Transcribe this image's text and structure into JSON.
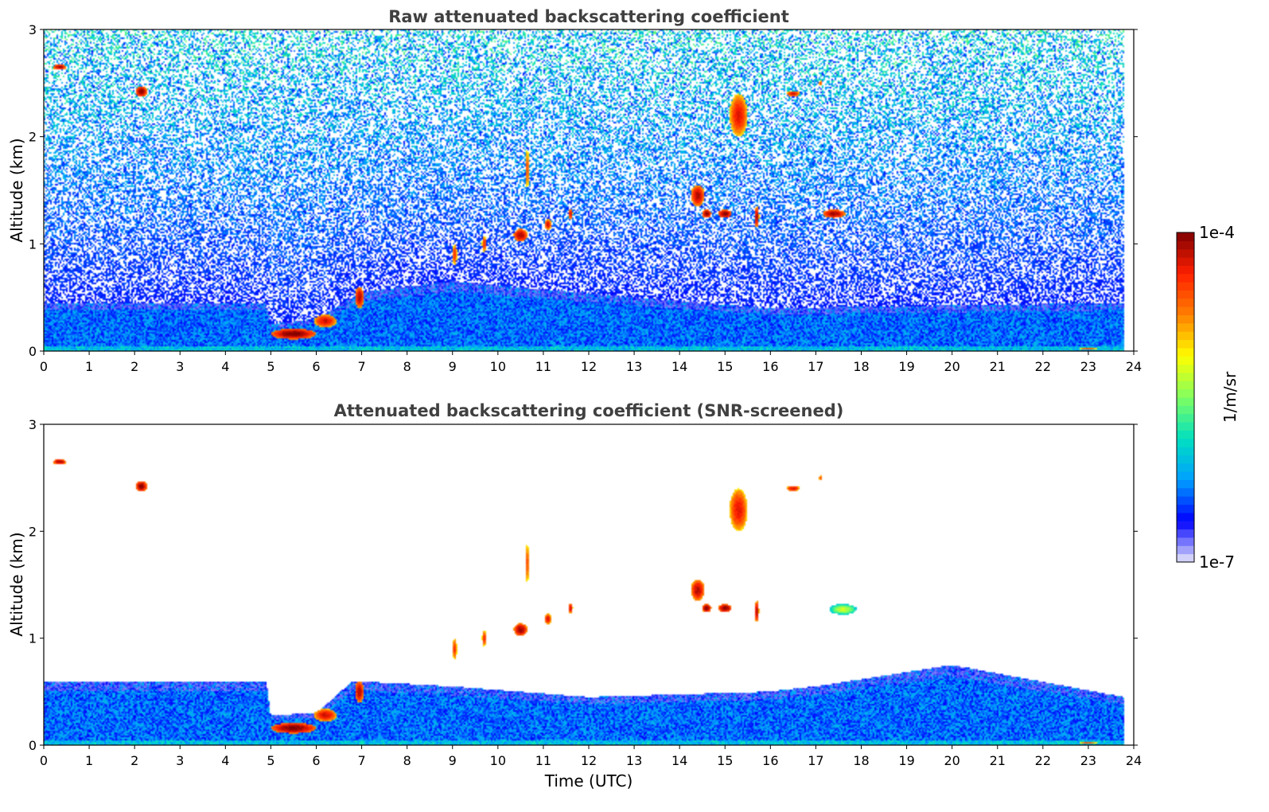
{
  "chart_data": [
    {
      "type": "heatmap",
      "title": "Raw attenuated backscattering coefficient",
      "xlabel": "",
      "ylabel": "Altitude (km)",
      "xlim": [
        0,
        24
      ],
      "ylim": [
        0,
        3
      ],
      "x_ticks": [
        "0",
        "1",
        "2",
        "3",
        "4",
        "5",
        "6",
        "7",
        "8",
        "9",
        "10",
        "11",
        "12",
        "13",
        "14",
        "15",
        "16",
        "17",
        "18",
        "19",
        "20",
        "21",
        "22",
        "23",
        "24"
      ],
      "y_ticks": [
        "0",
        "1",
        "2",
        "3"
      ],
      "data_extent_x": [
        0,
        23.8
      ],
      "noise": "high",
      "boundary_layer": [
        {
          "x": 0,
          "top": 0.45
        },
        {
          "x": 4.9,
          "top": 0.45
        },
        {
          "x": 5.0,
          "top": 0.25
        },
        {
          "x": 6.0,
          "top": 0.3
        },
        {
          "x": 7.0,
          "top": 0.55
        },
        {
          "x": 9.0,
          "top": 0.65
        },
        {
          "x": 13.0,
          "top": 0.5
        },
        {
          "x": 16.0,
          "top": 0.4
        },
        {
          "x": 23.8,
          "top": 0.45
        }
      ],
      "features": [
        {
          "x": 0.35,
          "y": 2.65,
          "w": 0.3,
          "h": 0.05,
          "level": 0.95
        },
        {
          "x": 2.15,
          "y": 2.42,
          "w": 0.25,
          "h": 0.1,
          "level": 0.97
        },
        {
          "x": 5.5,
          "y": 0.16,
          "w": 1.0,
          "h": 0.1,
          "level": 0.98
        },
        {
          "x": 6.2,
          "y": 0.28,
          "w": 0.5,
          "h": 0.12,
          "level": 0.9
        },
        {
          "x": 6.95,
          "y": 0.5,
          "w": 0.2,
          "h": 0.2,
          "level": 0.93
        },
        {
          "x": 9.05,
          "y": 0.9,
          "w": 0.1,
          "h": 0.2,
          "level": 0.85
        },
        {
          "x": 9.7,
          "y": 1.0,
          "w": 0.1,
          "h": 0.15,
          "level": 0.85
        },
        {
          "x": 10.5,
          "y": 1.08,
          "w": 0.3,
          "h": 0.12,
          "level": 0.95
        },
        {
          "x": 10.65,
          "y": 1.7,
          "w": 0.06,
          "h": 0.4,
          "level": 0.85
        },
        {
          "x": 11.1,
          "y": 1.18,
          "w": 0.15,
          "h": 0.1,
          "level": 0.9
        },
        {
          "x": 11.6,
          "y": 1.28,
          "w": 0.1,
          "h": 0.1,
          "level": 0.9
        },
        {
          "x": 14.4,
          "y": 1.45,
          "w": 0.3,
          "h": 0.2,
          "level": 0.93
        },
        {
          "x": 14.6,
          "y": 1.28,
          "w": 0.2,
          "h": 0.08,
          "level": 0.97
        },
        {
          "x": 15.0,
          "y": 1.28,
          "w": 0.3,
          "h": 0.08,
          "level": 0.97
        },
        {
          "x": 15.3,
          "y": 2.2,
          "w": 0.4,
          "h": 0.4,
          "level": 0.88
        },
        {
          "x": 15.7,
          "y": 1.25,
          "w": 0.1,
          "h": 0.2,
          "level": 0.93
        },
        {
          "x": 16.5,
          "y": 2.4,
          "w": 0.3,
          "h": 0.05,
          "level": 0.9
        },
        {
          "x": 17.1,
          "y": 2.5,
          "w": 0.05,
          "h": 0.05,
          "level": 0.9
        },
        {
          "x": 17.4,
          "y": 1.28,
          "w": 0.5,
          "h": 0.08,
          "level": 0.95
        },
        {
          "x": 23.0,
          "y": 0.02,
          "w": 0.4,
          "h": 0.02,
          "level": 0.8
        }
      ]
    },
    {
      "type": "heatmap",
      "title": "Attenuated backscattering coefficient (SNR-screened)",
      "xlabel": "Time (UTC)",
      "ylabel": "Altitude (km)",
      "xlim": [
        0,
        24
      ],
      "ylim": [
        0,
        3
      ],
      "x_ticks": [
        "0",
        "1",
        "2",
        "3",
        "4",
        "5",
        "6",
        "7",
        "8",
        "9",
        "10",
        "11",
        "12",
        "13",
        "14",
        "15",
        "16",
        "17",
        "18",
        "19",
        "20",
        "21",
        "22",
        "23",
        "24"
      ],
      "y_ticks": [
        "0",
        "1",
        "2",
        "3"
      ],
      "data_extent_x": [
        0,
        23.8
      ],
      "noise": "low",
      "boundary_layer": [
        {
          "x": 0,
          "top": 0.6
        },
        {
          "x": 4.9,
          "top": 0.6
        },
        {
          "x": 5.0,
          "top": 0.28
        },
        {
          "x": 6.0,
          "top": 0.3
        },
        {
          "x": 6.8,
          "top": 0.6
        },
        {
          "x": 9.0,
          "top": 0.55
        },
        {
          "x": 12.0,
          "top": 0.45
        },
        {
          "x": 15.9,
          "top": 0.5
        },
        {
          "x": 17.0,
          "top": 0.55
        },
        {
          "x": 20.0,
          "top": 0.75
        },
        {
          "x": 23.8,
          "top": 0.45
        }
      ],
      "features": [
        {
          "x": 0.35,
          "y": 2.65,
          "w": 0.3,
          "h": 0.05,
          "level": 0.95
        },
        {
          "x": 2.15,
          "y": 2.42,
          "w": 0.25,
          "h": 0.1,
          "level": 0.97
        },
        {
          "x": 5.5,
          "y": 0.16,
          "w": 1.0,
          "h": 0.1,
          "level": 0.98
        },
        {
          "x": 6.2,
          "y": 0.28,
          "w": 0.5,
          "h": 0.12,
          "level": 0.9
        },
        {
          "x": 6.95,
          "y": 0.5,
          "w": 0.2,
          "h": 0.2,
          "level": 0.93
        },
        {
          "x": 9.05,
          "y": 0.9,
          "w": 0.1,
          "h": 0.2,
          "level": 0.85
        },
        {
          "x": 9.7,
          "y": 1.0,
          "w": 0.1,
          "h": 0.15,
          "level": 0.85
        },
        {
          "x": 10.5,
          "y": 1.08,
          "w": 0.3,
          "h": 0.12,
          "level": 0.95
        },
        {
          "x": 10.65,
          "y": 1.7,
          "w": 0.06,
          "h": 0.4,
          "level": 0.85
        },
        {
          "x": 11.1,
          "y": 1.18,
          "w": 0.15,
          "h": 0.1,
          "level": 0.9
        },
        {
          "x": 11.6,
          "y": 1.28,
          "w": 0.1,
          "h": 0.1,
          "level": 0.9
        },
        {
          "x": 14.4,
          "y": 1.45,
          "w": 0.3,
          "h": 0.2,
          "level": 0.93
        },
        {
          "x": 14.6,
          "y": 1.28,
          "w": 0.2,
          "h": 0.08,
          "level": 0.97
        },
        {
          "x": 15.0,
          "y": 1.28,
          "w": 0.3,
          "h": 0.08,
          "level": 0.97
        },
        {
          "x": 15.3,
          "y": 2.2,
          "w": 0.4,
          "h": 0.4,
          "level": 0.88
        },
        {
          "x": 15.7,
          "y": 1.25,
          "w": 0.1,
          "h": 0.2,
          "level": 0.93
        },
        {
          "x": 16.5,
          "y": 2.4,
          "w": 0.3,
          "h": 0.05,
          "level": 0.9
        },
        {
          "x": 17.1,
          "y": 2.5,
          "w": 0.05,
          "h": 0.05,
          "level": 0.9
        },
        {
          "x": 17.6,
          "y": 1.27,
          "w": 0.6,
          "h": 0.1,
          "level": 0.55
        },
        {
          "x": 23.0,
          "y": 0.02,
          "w": 0.4,
          "h": 0.02,
          "level": 0.8
        }
      ]
    }
  ],
  "colorbar": {
    "label": "1/m/sr",
    "max_label": "1e-4",
    "min_label": "1e-7",
    "scale": "log",
    "colormap": "jet",
    "stops": [
      "#e8e8f8",
      "#0000ff",
      "#00a0ff",
      "#00e0c0",
      "#80ff60",
      "#ffff00",
      "#ff8000",
      "#ff2000",
      "#800000"
    ]
  }
}
